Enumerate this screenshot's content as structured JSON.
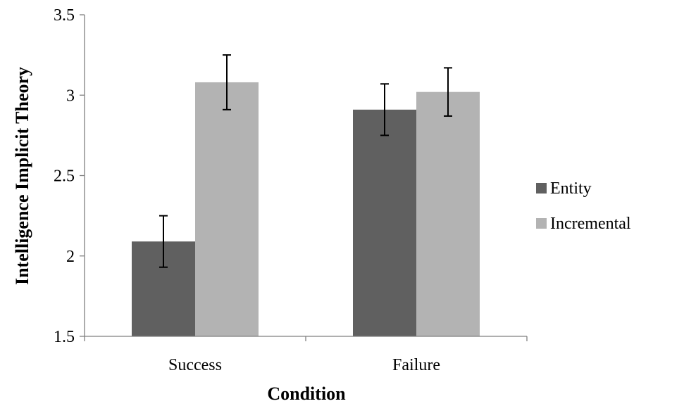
{
  "chart_data": {
    "type": "bar",
    "categories": [
      "Success",
      "Failure"
    ],
    "series": [
      {
        "name": "Entity",
        "values": [
          2.09,
          2.91
        ],
        "errors": [
          0.16,
          0.16
        ],
        "color": "#606060"
      },
      {
        "name": "Incremental",
        "values": [
          3.08,
          3.02
        ],
        "errors": [
          0.17,
          0.15
        ],
        "color": "#b3b3b3"
      }
    ],
    "title": "",
    "xlabel": "Condition",
    "ylabel": "Intelligence Implicit Theory",
    "ylim": [
      1.5,
      3.5
    ],
    "yticks": [
      1.5,
      2,
      2.5,
      3,
      3.5
    ],
    "ytick_labels": [
      "1.5",
      "2",
      "2.5",
      "3",
      "3.5"
    ],
    "grid": false,
    "legend": "right"
  }
}
